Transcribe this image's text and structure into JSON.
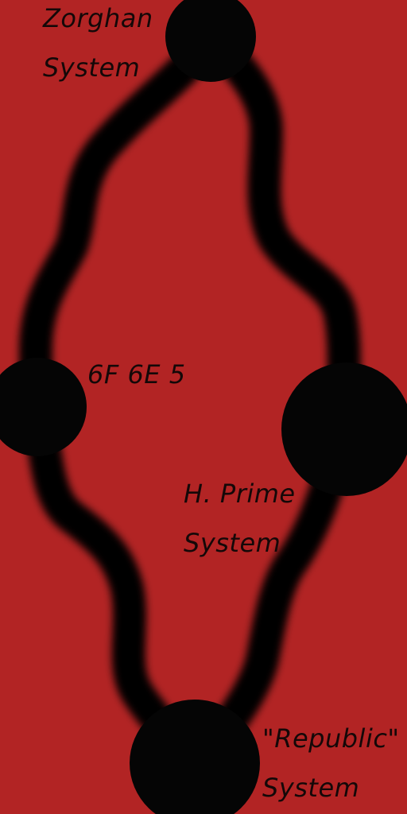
{
  "map": {
    "background_color": "#b22424",
    "route_color": "#050505",
    "systems": [
      {
        "id": "zorghan",
        "name_line1": "Zorghan",
        "name_line2": "System"
      },
      {
        "id": "6f6e5",
        "name_line1": "6F 6E 5",
        "name_line2": ""
      },
      {
        "id": "h-prime",
        "name_line1": "H. Prime",
        "name_line2": "System"
      },
      {
        "id": "republic",
        "name_line1": "\"Republic\"",
        "name_line2": "System"
      }
    ]
  }
}
